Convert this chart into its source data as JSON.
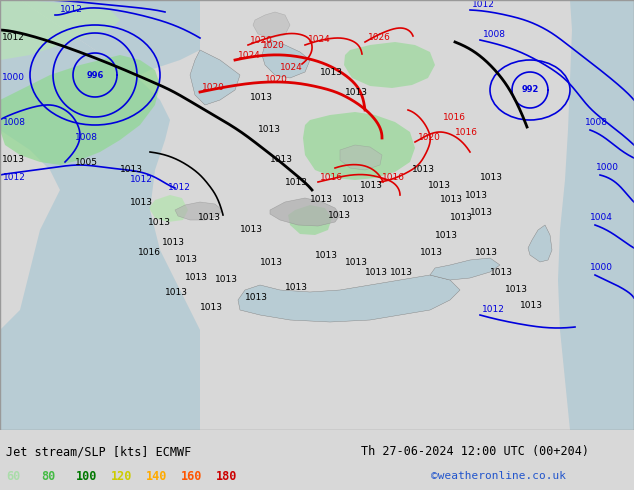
{
  "title_left": "Jet stream/SLP [kts] ECMWF",
  "title_right": "Th 27-06-2024 12:00 UTC (00+204)",
  "credit": "©weatheronline.co.uk",
  "legend_values": [
    "60",
    "80",
    "100",
    "120",
    "140",
    "160",
    "180"
  ],
  "legend_colors": [
    "#aaddaa",
    "#44bb44",
    "#007700",
    "#cccc00",
    "#ffaa00",
    "#ff5500",
    "#cc0000"
  ],
  "bg_map_color": "#c8d8b0",
  "ocean_color": "#b0c8d0",
  "bottom_bar_color": "#d8d8d8",
  "title_fontsize": 8.5,
  "label_fontsize": 8.5,
  "contour_fontsize": 6.5
}
